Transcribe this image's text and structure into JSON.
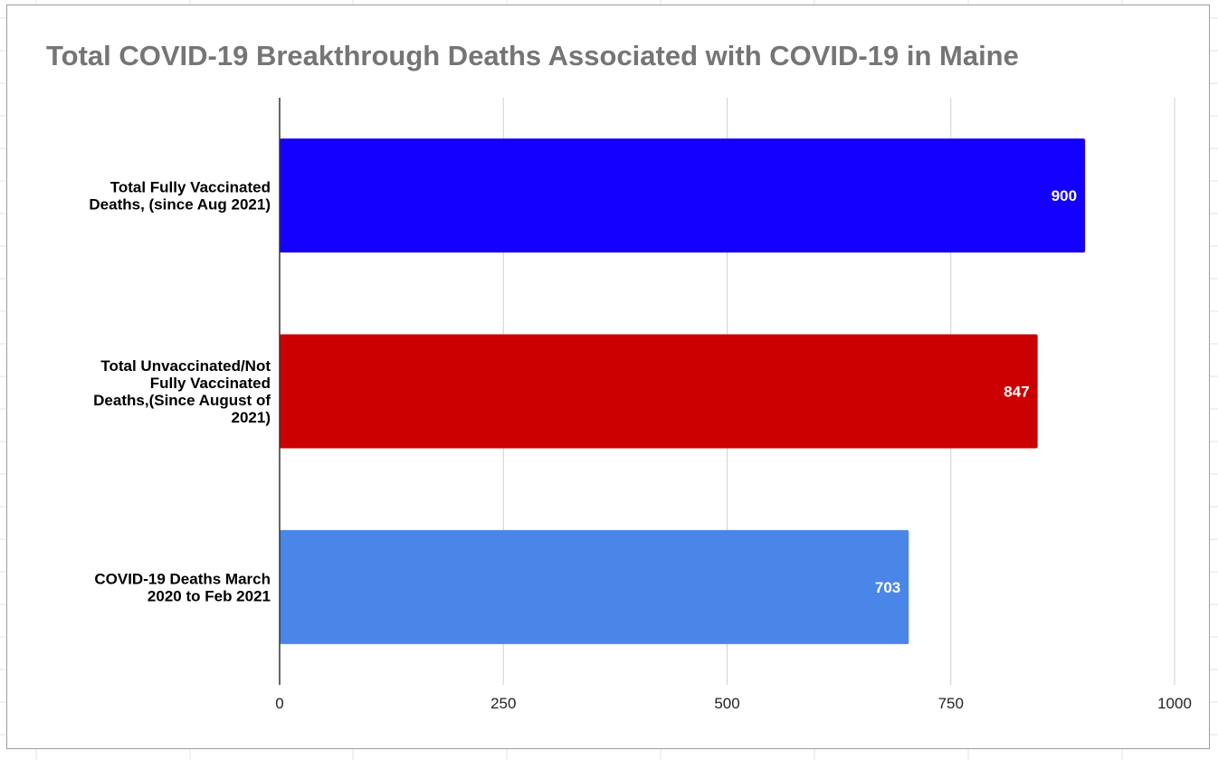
{
  "chart_data": {
    "type": "bar",
    "orientation": "horizontal",
    "title": "Total COVID-19 Breakthrough Deaths Associated with COVID-19 in Maine",
    "categories": [
      "Total Fully Vaccinated Deaths, (since Aug 2021)",
      "Total Unvaccinated/Not Fully Vaccinated Deaths,(Since August of 2021)",
      "COVID-19 Deaths March 2020 to Feb 2021"
    ],
    "category_lines": [
      [
        "Total Fully Vaccinated",
        "Deaths, (since Aug 2021)"
      ],
      [
        "Total Unvaccinated/Not",
        "Fully Vaccinated",
        "Deaths,(Since August of",
        "2021)"
      ],
      [
        "COVID-19 Deaths March",
        "2020 to Feb 2021"
      ]
    ],
    "values": [
      900,
      847,
      703
    ],
    "data_labels": [
      "900",
      "847",
      "703"
    ],
    "bar_colors": [
      "#1400ff",
      "#cc0000",
      "#4a86e8"
    ],
    "xlim": [
      0,
      1000
    ],
    "xticks": [
      0,
      250,
      500,
      750,
      1000
    ],
    "xtick_labels": [
      "0",
      "250",
      "500",
      "750",
      "1000"
    ],
    "grid": true,
    "legend": "none",
    "xlabel": "",
    "ylabel": ""
  }
}
